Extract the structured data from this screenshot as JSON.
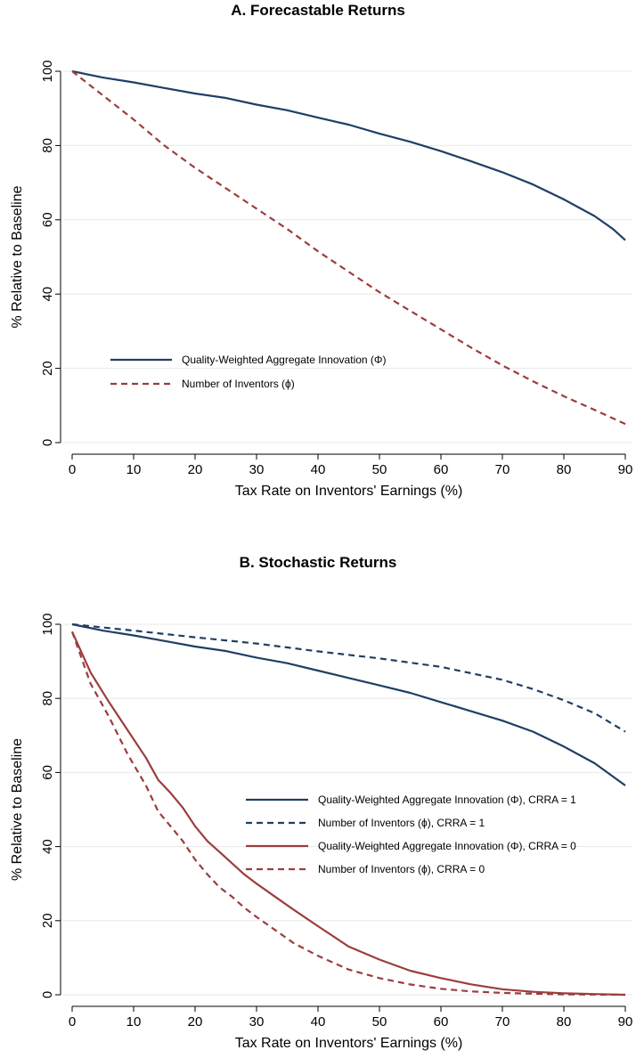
{
  "chart_data": [
    {
      "type": "line",
      "title": "A. Forecastable Returns",
      "xlabel": "Tax Rate on Inventors' Earnings (%)",
      "ylabel": "% Relative to Baseline",
      "xlim": [
        0,
        90
      ],
      "ylim": [
        0,
        100
      ],
      "xticks": [
        0,
        10,
        20,
        30,
        40,
        50,
        60,
        70,
        80,
        90
      ],
      "yticks": [
        0,
        20,
        40,
        60,
        80,
        100
      ],
      "grid": true,
      "legend_position": "bottom-left inside plot",
      "series": [
        {
          "name": "Quality-Weighted Aggregate Innovation (Φ)",
          "color": "#1f3f66",
          "style": "solid",
          "x": [
            0,
            5,
            10,
            15,
            20,
            25,
            30,
            35,
            40,
            45,
            50,
            55,
            60,
            65,
            70,
            75,
            80,
            85,
            88,
            90
          ],
          "y": [
            100,
            98.3,
            97,
            95.5,
            94,
            92.8,
            91,
            89.5,
            87.5,
            85.6,
            83.2,
            81,
            78.5,
            75.7,
            72.8,
            69.5,
            65.5,
            61,
            57.5,
            54.5
          ]
        },
        {
          "name": "Number of Inventors (ϕ)",
          "color": "#9c3d3d",
          "style": "dashed",
          "x": [
            0,
            5,
            10,
            15,
            20,
            25,
            30,
            35,
            40,
            45,
            50,
            55,
            60,
            65,
            70,
            75,
            80,
            85,
            90
          ],
          "y": [
            100,
            93.5,
            87,
            80,
            74,
            68.5,
            63,
            57.5,
            51.5,
            46,
            40.5,
            35.5,
            30.5,
            25.5,
            20.8,
            16.5,
            12.5,
            8.8,
            5
          ]
        }
      ]
    },
    {
      "type": "line",
      "title": "B. Stochastic Returns",
      "xlabel": "Tax Rate on Inventors' Earnings (%)",
      "ylabel": "% Relative to Baseline",
      "xlim": [
        0,
        90
      ],
      "ylim": [
        0,
        100
      ],
      "xticks": [
        0,
        10,
        20,
        30,
        40,
        50,
        60,
        70,
        80,
        90
      ],
      "yticks": [
        0,
        20,
        40,
        60,
        80,
        100
      ],
      "grid": true,
      "legend_position": "middle-right inside plot",
      "series": [
        {
          "name": "Quality-Weighted Aggregate Innovation (Φ), CRRA = 1",
          "color": "#1f3f66",
          "style": "solid",
          "x": [
            0,
            5,
            10,
            15,
            20,
            25,
            30,
            35,
            40,
            45,
            50,
            55,
            60,
            65,
            70,
            75,
            80,
            85,
            90
          ],
          "y": [
            100,
            98.3,
            97,
            95.5,
            94,
            92.8,
            91,
            89.5,
            87.5,
            85.5,
            83.5,
            81.5,
            79,
            76.5,
            74,
            71,
            67,
            62.5,
            56.5
          ]
        },
        {
          "name": "Number of Inventors (ϕ), CRRA = 1",
          "color": "#1f3f66",
          "style": "dashed",
          "x": [
            0,
            10,
            20,
            30,
            40,
            50,
            60,
            70,
            75,
            80,
            85,
            90
          ],
          "y": [
            100,
            98.3,
            96.5,
            94.8,
            92.7,
            90.8,
            88.5,
            85,
            82.5,
            79.5,
            76,
            71
          ]
        },
        {
          "name": "Quality-Weighted Aggregate Innovation (Φ), CRRA = 0",
          "color": "#9c3d3d",
          "style": "solid",
          "x": [
            0,
            3,
            6,
            9,
            12,
            14,
            16,
            18,
            20,
            22,
            24,
            26,
            28,
            30,
            33,
            36,
            40,
            45,
            50,
            55,
            60,
            65,
            70,
            75,
            80,
            85,
            90
          ],
          "y": [
            98,
            87,
            79,
            71.5,
            64,
            58,
            54.5,
            50.5,
            45.5,
            41.5,
            38.5,
            35.5,
            32.5,
            30,
            26.5,
            23,
            18.5,
            13,
            9.5,
            6.5,
            4.5,
            2.8,
            1.5,
            0.8,
            0.4,
            0.2,
            0
          ]
        },
        {
          "name": "Number of Inventors (ϕ), CRRA = 0",
          "color": "#9c3d3d",
          "style": "dashed",
          "x": [
            0,
            3,
            6,
            9,
            12,
            14,
            16,
            18,
            20,
            22,
            24,
            26,
            28,
            30,
            33,
            36,
            40,
            45,
            50,
            55,
            60,
            65,
            70,
            75,
            80,
            85,
            90
          ],
          "y": [
            98,
            84,
            75,
            65,
            56.5,
            49.5,
            45.5,
            41.5,
            36.5,
            32.5,
            29,
            26.5,
            23.5,
            21,
            17.5,
            14,
            10.5,
            6.8,
            4.5,
            2.8,
            1.6,
            0.9,
            0.5,
            0.3,
            0.1,
            0.05,
            0
          ]
        }
      ]
    }
  ]
}
